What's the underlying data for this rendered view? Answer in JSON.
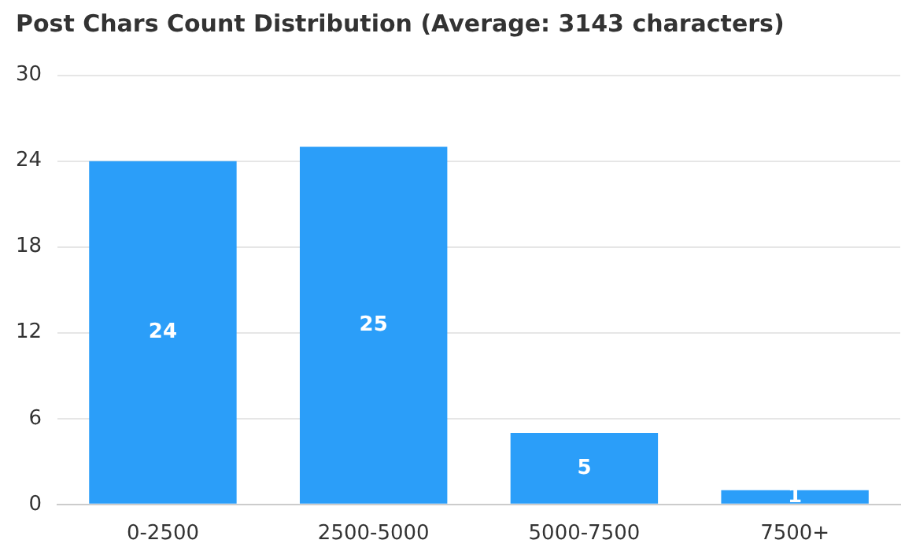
{
  "chart_data": {
    "type": "bar",
    "title": "Post Chars Count Distribution (Average: 3143 characters)",
    "categories": [
      "0-2500",
      "2500-5000",
      "5000-7500",
      "7500+"
    ],
    "values": [
      24,
      25,
      5,
      1
    ],
    "color": "#2b9ef9",
    "ylim": [
      0,
      30
    ],
    "yticks": [
      0,
      6,
      12,
      18,
      24,
      30
    ],
    "grid": "y",
    "data_labels": true,
    "legend": false
  }
}
